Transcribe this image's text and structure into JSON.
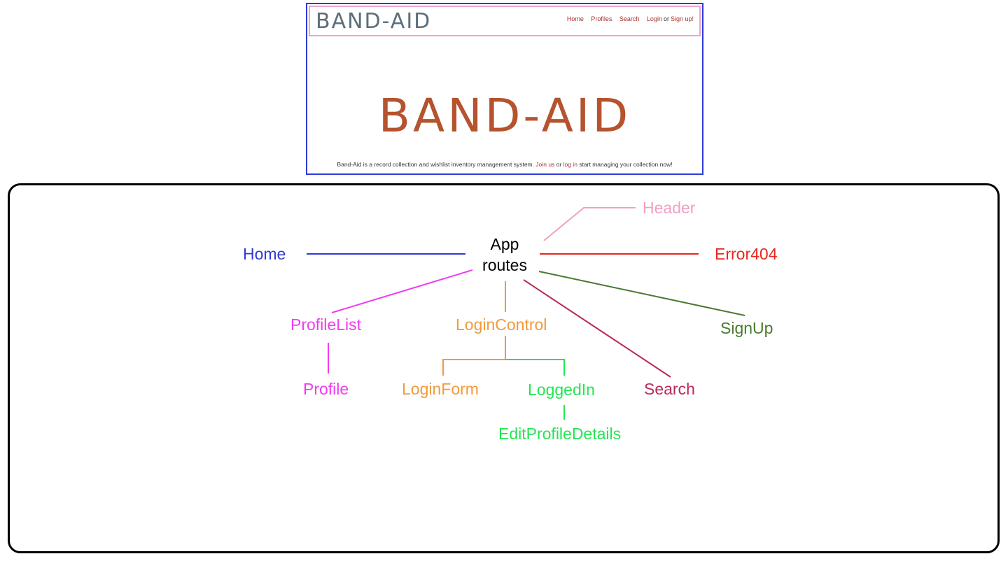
{
  "mockup": {
    "brand_small": "BAND-AID",
    "nav": {
      "home": "Home",
      "profiles": "Profiles",
      "search": "Search",
      "login": "Login",
      "or": "or",
      "signup": "Sign up!"
    },
    "brand_big": "BAND-AID",
    "tagline": {
      "text1": "Band-Aid is a record collection and wishlist inventory management system.",
      "join": "Join us",
      "or": "or",
      "login": "log in",
      "text2": "start managing your collection now!"
    }
  },
  "diagram": {
    "root": {
      "line1": "App",
      "line2": "routes"
    },
    "nodes": {
      "header": {
        "label": "Header",
        "color": "#f0a0c4"
      },
      "home": {
        "label": "Home",
        "color": "#2f3bd6"
      },
      "error404": {
        "label": "Error404",
        "color": "#e8261e"
      },
      "profile_list": {
        "label": "ProfileList",
        "color": "#f03cf0"
      },
      "login_control": {
        "label": "LoginControl",
        "color": "#f29a3a"
      },
      "signup": {
        "label": "SignUp",
        "color": "#4a7a2e"
      },
      "profile": {
        "label": "Profile",
        "color": "#f03cf0"
      },
      "login_form": {
        "label": "LoginForm",
        "color": "#f29a3a"
      },
      "logged_in": {
        "label": "LoggedIn",
        "color": "#22e650"
      },
      "search": {
        "label": "Search",
        "color": "#b8285a"
      },
      "edit_profile_details": {
        "label": "EditProfileDetails",
        "color": "#22e650"
      }
    }
  }
}
